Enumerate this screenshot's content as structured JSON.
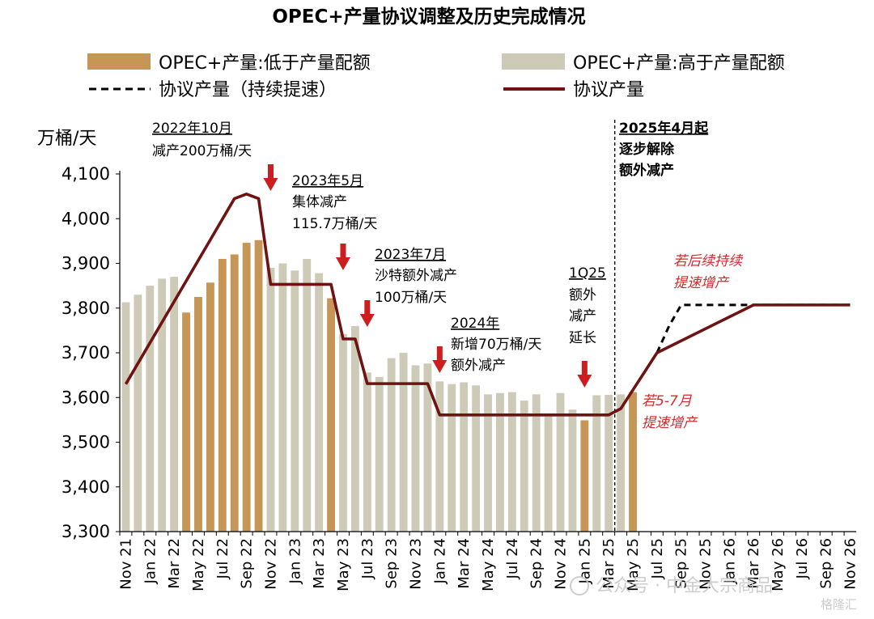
{
  "chart_data": {
    "type": "bar",
    "title": "OPEC+产量协议调整及历史完成情况",
    "ylabel": "万桶/天",
    "ylim": [
      3300,
      4100
    ],
    "yticks": [
      3300,
      3400,
      3500,
      3600,
      3700,
      3800,
      3900,
      4000,
      4100
    ],
    "ytick_labels": [
      "3,300",
      "3,400",
      "3,500",
      "3,600",
      "3,700",
      "3,800",
      "3,900",
      "4,000",
      "4,100"
    ],
    "grid": false,
    "legend_position": "top",
    "colors": {
      "below": "#c69657",
      "above": "#cdcbb8",
      "target_line": "#6e1212",
      "dashed_line": "#000000",
      "arrow": "#cc1e1e",
      "annotation_red": "#d42a2a"
    },
    "legend": {
      "below": "OPEC+产量:低于产量配额",
      "above": "OPEC+产量:高于产量配额",
      "dashed": "协议产量（持续提速）",
      "solid": "协议产量"
    },
    "x_months": [
      "Nov 21",
      "Dec 21",
      "Jan 22",
      "Feb 22",
      "Mar 22",
      "Apr 22",
      "May 22",
      "Jun 22",
      "Jul 22",
      "Aug 22",
      "Sep 22",
      "Oct 22",
      "Nov 22",
      "Dec 22",
      "Jan 23",
      "Feb 23",
      "Mar 23",
      "Apr 23",
      "May 23",
      "Jun 23",
      "Jul 23",
      "Aug 23",
      "Sep 23",
      "Oct 23",
      "Nov 23",
      "Dec 23",
      "Jan 24",
      "Feb 24",
      "Mar 24",
      "Apr 24",
      "May 24",
      "Jun 24",
      "Jul 24",
      "Aug 24",
      "Sep 24",
      "Oct 24",
      "Nov 24",
      "Dec 24",
      "Jan 25",
      "Feb 25",
      "Mar 25",
      "Apr 25",
      "May 25",
      "Jun 25",
      "Jul 25",
      "Aug 25",
      "Sep 25",
      "Oct 25",
      "Nov 25",
      "Dec 25",
      "Jan 26",
      "Feb 26",
      "Mar 26",
      "Apr 26",
      "May 26",
      "Jun 26",
      "Jul 26",
      "Aug 26",
      "Sep 26",
      "Oct 26",
      "Nov 26"
    ],
    "xtick_labels": [
      {
        "month": "Nov 21",
        "label": "Nov 21"
      },
      {
        "month": "Jan 22",
        "label": "Jan 22"
      },
      {
        "month": "Mar 22",
        "label": "Mar 22"
      },
      {
        "month": "May 22",
        "label": "May 22"
      },
      {
        "month": "Jul 22",
        "label": "Jul 22"
      },
      {
        "month": "Sep 22",
        "label": "Sep 22"
      },
      {
        "month": "Nov 22",
        "label": "Nov 22"
      },
      {
        "month": "Jan 23",
        "label": "Jan 23"
      },
      {
        "month": "Mar 23",
        "label": "Mar 23"
      },
      {
        "month": "May 23",
        "label": "May 23"
      },
      {
        "month": "Jul 23",
        "label": "Jul 23"
      },
      {
        "month": "Sep 23",
        "label": "Sep 23"
      },
      {
        "month": "Nov 23",
        "label": "Nov 23"
      },
      {
        "month": "Jan 24",
        "label": "Jan 24"
      },
      {
        "month": "Mar 24",
        "label": "Mar 24"
      },
      {
        "month": "May 24",
        "label": "May 24"
      },
      {
        "month": "Jul 24",
        "label": "Jul 24"
      },
      {
        "month": "Sep 24",
        "label": "Sep 24"
      },
      {
        "month": "Nov 24",
        "label": "Nov 24"
      },
      {
        "month": "Jan 25",
        "label": "Jan 25"
      },
      {
        "month": "Mar 25",
        "label": "Mar 25"
      },
      {
        "month": "May 25",
        "label": "May 25"
      },
      {
        "month": "Jul 25",
        "label": "Jul 25"
      },
      {
        "month": "Sep 25",
        "label": "Sep 25"
      },
      {
        "month": "Nov 25",
        "label": "Nov 25"
      },
      {
        "month": "Jan 26",
        "label": "Jan 26"
      },
      {
        "month": "Mar 26",
        "label": "Mar 26"
      },
      {
        "month": "May 26",
        "label": "May 26"
      },
      {
        "month": "Jul 26",
        "label": "Jul 26"
      },
      {
        "month": "Sep 26",
        "label": "Sep 26"
      },
      {
        "month": "Nov 26",
        "label": "Nov 26"
      }
    ],
    "production": [
      {
        "month": "Nov 21",
        "value": 3813,
        "status": "above"
      },
      {
        "month": "Dec 21",
        "value": 3830,
        "status": "above"
      },
      {
        "month": "Jan 22",
        "value": 3850,
        "status": "above"
      },
      {
        "month": "Feb 22",
        "value": 3866,
        "status": "above"
      },
      {
        "month": "Mar 22",
        "value": 3870,
        "status": "above"
      },
      {
        "month": "Apr 22",
        "value": 3790,
        "status": "below"
      },
      {
        "month": "May 22",
        "value": 3825,
        "status": "below"
      },
      {
        "month": "Jun 22",
        "value": 3857,
        "status": "below"
      },
      {
        "month": "Jul 22",
        "value": 3910,
        "status": "below"
      },
      {
        "month": "Aug 22",
        "value": 3920,
        "status": "below"
      },
      {
        "month": "Sep 22",
        "value": 3946,
        "status": "below"
      },
      {
        "month": "Oct 22",
        "value": 3952,
        "status": "below"
      },
      {
        "month": "Nov 22",
        "value": 3890,
        "status": "above"
      },
      {
        "month": "Dec 22",
        "value": 3900,
        "status": "above"
      },
      {
        "month": "Jan 23",
        "value": 3884,
        "status": "above"
      },
      {
        "month": "Feb 23",
        "value": 3910,
        "status": "above"
      },
      {
        "month": "Mar 23",
        "value": 3878,
        "status": "above"
      },
      {
        "month": "Apr 23",
        "value": 3822,
        "status": "below"
      },
      {
        "month": "May 23",
        "value": 3742,
        "status": "above"
      },
      {
        "month": "Jun 23",
        "value": 3760,
        "status": "above"
      },
      {
        "month": "Jul 23",
        "value": 3656,
        "status": "above"
      },
      {
        "month": "Aug 23",
        "value": 3646,
        "status": "above"
      },
      {
        "month": "Sep 23",
        "value": 3688,
        "status": "above"
      },
      {
        "month": "Oct 23",
        "value": 3700,
        "status": "above"
      },
      {
        "month": "Nov 23",
        "value": 3672,
        "status": "above"
      },
      {
        "month": "Dec 23",
        "value": 3676,
        "status": "above"
      },
      {
        "month": "Jan 24",
        "value": 3636,
        "status": "above"
      },
      {
        "month": "Feb 24",
        "value": 3630,
        "status": "above"
      },
      {
        "month": "Mar 24",
        "value": 3634,
        "status": "above"
      },
      {
        "month": "Apr 24",
        "value": 3627,
        "status": "above"
      },
      {
        "month": "May 24",
        "value": 3607,
        "status": "above"
      },
      {
        "month": "Jun 24",
        "value": 3610,
        "status": "above"
      },
      {
        "month": "Jul 24",
        "value": 3612,
        "status": "above"
      },
      {
        "month": "Aug 24",
        "value": 3593,
        "status": "above"
      },
      {
        "month": "Sep 24",
        "value": 3607,
        "status": "above"
      },
      {
        "month": "Oct 24",
        "value": 3560,
        "status": "above"
      },
      {
        "month": "Nov 24",
        "value": 3610,
        "status": "above"
      },
      {
        "month": "Dec 24",
        "value": 3573,
        "status": "above"
      },
      {
        "month": "Jan 25",
        "value": 3549,
        "status": "below"
      },
      {
        "month": "Feb 25",
        "value": 3605,
        "status": "above"
      },
      {
        "month": "Mar 25",
        "value": 3606,
        "status": "above"
      },
      {
        "month": "Apr 25",
        "value": 3607,
        "status": "above"
      },
      {
        "month": "May 25",
        "value": 3612,
        "status": "below"
      }
    ],
    "target_solid": [
      {
        "month": "Nov 21",
        "value": 3630
      },
      {
        "month": "Aug 22",
        "value": 4045
      },
      {
        "month": "Sep 22",
        "value": 4055
      },
      {
        "month": "Oct 22",
        "value": 4045
      },
      {
        "month": "Nov 22",
        "value": 3853
      },
      {
        "month": "Apr 23",
        "value": 3853
      },
      {
        "month": "May 23",
        "value": 3731
      },
      {
        "month": "Jun 23",
        "value": 3731
      },
      {
        "month": "Jul 23",
        "value": 3631
      },
      {
        "month": "Dec 23",
        "value": 3631
      },
      {
        "month": "Jan 24",
        "value": 3561
      },
      {
        "month": "Mar 25",
        "value": 3561
      },
      {
        "month": "Apr 25",
        "value": 3575
      },
      {
        "month": "Jul 25",
        "value": 3700
      },
      {
        "month": "Mar 26",
        "value": 3807
      },
      {
        "month": "Nov 26",
        "value": 3807
      }
    ],
    "target_dashed": [
      {
        "month": "Jul 25",
        "value": 3700
      },
      {
        "month": "Aug 25",
        "value": 3760
      },
      {
        "month": "Sep 25",
        "value": 3807
      },
      {
        "month": "Nov 26",
        "value": 3807
      }
    ],
    "divider_month": "Apr 25",
    "annotations": [
      {
        "id": "a2022",
        "lines": [
          "2022年10月",
          "减产200万桶/天"
        ],
        "arrow_month": "Nov 22"
      },
      {
        "id": "a2023may",
        "lines": [
          "2023年5月",
          "集体减产",
          "115.7万桶/天"
        ],
        "arrow_month": "May 23"
      },
      {
        "id": "a2023jul",
        "lines": [
          "2023年7月",
          "沙特额外减产",
          "100万桶/天"
        ],
        "arrow_month": "Jul 23"
      },
      {
        "id": "a2024",
        "lines": [
          "2024年",
          "新增70万桶/天",
          "额外减产"
        ],
        "arrow_month": "Jan 24"
      },
      {
        "id": "a1q25",
        "lines": [
          "1Q25",
          "额外",
          "减产",
          "延长"
        ],
        "arrow_month": "Jan 25"
      },
      {
        "id": "a2025apr",
        "lines": [
          "2025年4月起",
          "逐步解除",
          "额外减产"
        ]
      },
      {
        "id": "aredtop",
        "lines": [
          "若后续持续",
          "提速增产"
        ]
      },
      {
        "id": "aredbottom",
        "lines": [
          "若5-7月",
          "提速增产"
        ]
      }
    ]
  },
  "watermark": {
    "text": "公众号 · 中金大宗商品",
    "badge": "格隆汇"
  }
}
